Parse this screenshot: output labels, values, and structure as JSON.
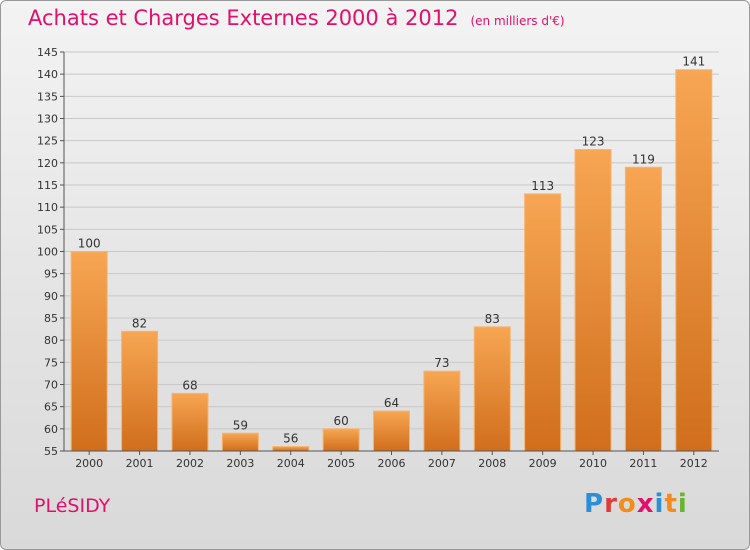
{
  "header": {
    "title": "Achats et Charges Externes 2000 à 2012",
    "subtitle": "(en milliers d'€)"
  },
  "footer": {
    "commune": "PLéSIDY",
    "brand_letters": [
      "P",
      "r",
      "o",
      "x",
      "i",
      "t",
      "i"
    ],
    "brand_colors": [
      "#2a8fd6",
      "#e03a3a",
      "#f28c1e",
      "#e0106b",
      "#2a8fd6",
      "#f28c1e",
      "#6ab52e"
    ]
  },
  "colors": {
    "bar_top": "#f7a653",
    "bar_bottom": "#d06e1c",
    "accent": "#e0106b"
  },
  "chart_data": {
    "type": "bar",
    "categories": [
      "2000",
      "2001",
      "2002",
      "2003",
      "2004",
      "2005",
      "2006",
      "2007",
      "2008",
      "2009",
      "2010",
      "2011",
      "2012"
    ],
    "values": [
      100,
      82,
      68,
      59,
      56,
      60,
      64,
      73,
      83,
      113,
      123,
      119,
      141
    ],
    "title": "Achats et Charges Externes 2000 à 2012",
    "xlabel": "",
    "ylabel": "",
    "ylim": [
      55,
      145
    ],
    "yticks": [
      55,
      60,
      65,
      70,
      75,
      80,
      85,
      90,
      95,
      100,
      105,
      110,
      115,
      120,
      125,
      130,
      135,
      140,
      145
    ],
    "grid": true,
    "legend": "none"
  }
}
